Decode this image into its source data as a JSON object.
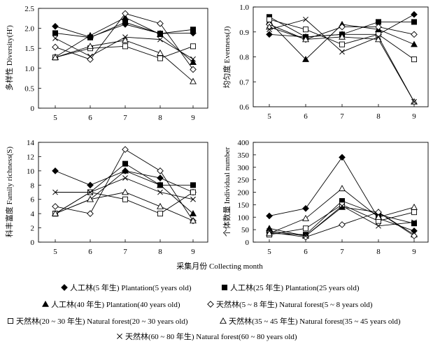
{
  "figure": {
    "x_caption": "采集月份 Collecting month",
    "legend": [
      {
        "marker": "diamond_filled",
        "label": "人工林(5 年生) Plantation(5 years old)"
      },
      {
        "marker": "square_filled",
        "label": "人工林(25 年生) Plantation(25 years old)"
      },
      {
        "marker": "triangle_filled",
        "label": "人工林(40 年生) Plantation(40 years old)"
      },
      {
        "marker": "diamond_open",
        "label": "天然林(5 ~ 8 年生) Natural forest(5 ~ 8 years old)"
      },
      {
        "marker": "square_open",
        "label": "天然林(20 ~ 30 年生) Natural forest(20 ~ 30 years old)"
      },
      {
        "marker": "triangle_open",
        "label": "天然林(35 ~ 45 年生) Natural forest(35 ~ 45 years old)"
      },
      {
        "marker": "x",
        "label": "天然林(60 ~ 80 年生) Natural forest(60 ~ 80 years old)"
      }
    ]
  },
  "chart_data": [
    {
      "type": "line",
      "ylabel": "多样性 Diversity(H')",
      "x": [
        5,
        6,
        7,
        8,
        9
      ],
      "ylim": [
        0,
        2.5
      ],
      "yticks": [
        0,
        0.5,
        1,
        1.5,
        2,
        2.5
      ],
      "ytick_labels": [
        "0",
        "0.5",
        "1.0",
        "1.5",
        "2.0",
        "2.5"
      ],
      "series": [
        {
          "name": "人工林(5 年生)",
          "marker": "diamond_filled",
          "values": [
            2.05,
            1.78,
            2.1,
            1.87,
            1.88
          ]
        },
        {
          "name": "人工林(25 年生)",
          "marker": "square_filled",
          "values": [
            1.88,
            1.77,
            2.15,
            1.87,
            1.97
          ]
        },
        {
          "name": "人工林(40 年生)",
          "marker": "triangle_filled",
          "values": [
            1.28,
            1.82,
            2.27,
            1.85,
            1.15
          ]
        },
        {
          "name": "天然林(5 ~ 8 年生)",
          "marker": "diamond_open",
          "values": [
            1.53,
            1.22,
            2.37,
            2.12,
            0.97
          ]
        },
        {
          "name": "天然林(20 ~ 30 年生)",
          "marker": "square_open",
          "values": [
            1.27,
            1.5,
            1.55,
            1.25,
            1.55
          ]
        },
        {
          "name": "天然林(35 ~ 45 年生)",
          "marker": "triangle_open",
          "values": [
            1.27,
            1.55,
            1.7,
            1.38,
            0.67
          ]
        },
        {
          "name": "天然林(60 ~ 80 年生)",
          "marker": "x",
          "values": [
            1.75,
            1.3,
            1.78,
            1.72,
            1.23
          ]
        }
      ]
    },
    {
      "type": "line",
      "ylabel": "均匀度 Evenness(J)",
      "x": [
        5,
        6,
        7,
        8,
        9
      ],
      "ylim": [
        0.6,
        1.0
      ],
      "yticks": [
        0.6,
        0.7,
        0.8,
        0.9,
        1.0
      ],
      "ytick_labels": [
        "0.6",
        "0.7",
        "0.8",
        "0.9",
        "1.0"
      ],
      "series": [
        {
          "name": "人工林(5 年生)",
          "marker": "diamond_filled",
          "values": [
            0.89,
            0.88,
            0.89,
            0.89,
            0.97
          ]
        },
        {
          "name": "人工林(25 年生)",
          "marker": "square_filled",
          "values": [
            0.96,
            0.88,
            0.89,
            0.94,
            0.94
          ]
        },
        {
          "name": "人工林(40 年生)",
          "marker": "triangle_filled",
          "values": [
            0.94,
            0.79,
            0.93,
            0.91,
            0.85
          ]
        },
        {
          "name": "天然林(5 ~ 8 年生)",
          "marker": "diamond_open",
          "values": [
            0.93,
            0.87,
            0.92,
            0.92,
            0.89
          ]
        },
        {
          "name": "天然林(20 ~ 30 年生)",
          "marker": "square_open",
          "values": [
            0.95,
            0.91,
            0.85,
            0.89,
            0.79
          ]
        },
        {
          "name": "天然林(35 ~ 45 年生)",
          "marker": "triangle_open",
          "values": [
            0.92,
            0.87,
            0.88,
            0.87,
            0.62
          ]
        },
        {
          "name": "天然林(60 ~ 80 年生)",
          "marker": "x",
          "values": [
            0.91,
            0.95,
            0.82,
            0.88,
            0.62
          ]
        }
      ]
    },
    {
      "type": "line",
      "ylabel": "科丰富度 Family richness(S)",
      "x": [
        5,
        6,
        7,
        8,
        9
      ],
      "ylim": [
        0,
        14
      ],
      "yticks": [
        0,
        2,
        4,
        6,
        8,
        10,
        12,
        14
      ],
      "ytick_labels": [
        "0",
        "2",
        "4",
        "6",
        "8",
        "10",
        "12",
        "14"
      ],
      "series": [
        {
          "name": "人工林(5 年生)",
          "marker": "diamond_filled",
          "values": [
            10,
            8,
            10,
            9,
            7
          ]
        },
        {
          "name": "人工林(25 年生)",
          "marker": "square_filled",
          "values": [
            4,
            7,
            11,
            8,
            8
          ]
        },
        {
          "name": "人工林(40 年生)",
          "marker": "triangle_filled",
          "values": [
            4,
            6,
            10,
            8,
            4
          ]
        },
        {
          "name": "天然林(5 ~ 8 年生)",
          "marker": "diamond_open",
          "values": [
            5,
            4,
            13,
            10,
            3
          ]
        },
        {
          "name": "天然林(20 ~ 30 年生)",
          "marker": "square_open",
          "values": [
            4,
            7,
            6,
            4,
            7
          ]
        },
        {
          "name": "天然林(35 ~ 45 年生)",
          "marker": "triangle_open",
          "values": [
            4,
            6,
            7,
            5,
            3
          ]
        },
        {
          "name": "天然林(60 ~ 80 年生)",
          "marker": "x",
          "values": [
            7,
            7,
            9,
            7,
            6
          ]
        }
      ]
    },
    {
      "type": "line",
      "ylabel": "个体数量 Individual number",
      "x": [
        5,
        6,
        7,
        8,
        9
      ],
      "ylim": [
        0,
        400
      ],
      "yticks": [
        0,
        50,
        100,
        150,
        200,
        250,
        300,
        350,
        400
      ],
      "ytick_labels": [
        "0",
        "50",
        "100",
        "150",
        "200",
        "250",
        "300",
        "350",
        "400"
      ],
      "series": [
        {
          "name": "人工林(5 年生)",
          "marker": "diamond_filled",
          "values": [
            105,
            135,
            340,
            95,
            45
          ]
        },
        {
          "name": "人工林(25 年生)",
          "marker": "square_filled",
          "values": [
            35,
            30,
            165,
            110,
            75
          ]
        },
        {
          "name": "人工林(40 年生)",
          "marker": "triangle_filled",
          "values": [
            55,
            25,
            140,
            120,
            30
          ]
        },
        {
          "name": "天然林(5 ~ 8 年生)",
          "marker": "diamond_open",
          "values": [
            40,
            20,
            70,
            120,
            25
          ]
        },
        {
          "name": "天然林(20 ~ 30 年生)",
          "marker": "square_open",
          "values": [
            30,
            55,
            150,
            85,
            120
          ]
        },
        {
          "name": "天然林(35 ~ 45 年生)",
          "marker": "triangle_open",
          "values": [
            35,
            95,
            215,
            100,
            140
          ]
        },
        {
          "name": "天然林(60 ~ 80 年生)",
          "marker": "x",
          "values": [
            45,
            25,
            145,
            65,
            80
          ]
        }
      ]
    }
  ]
}
